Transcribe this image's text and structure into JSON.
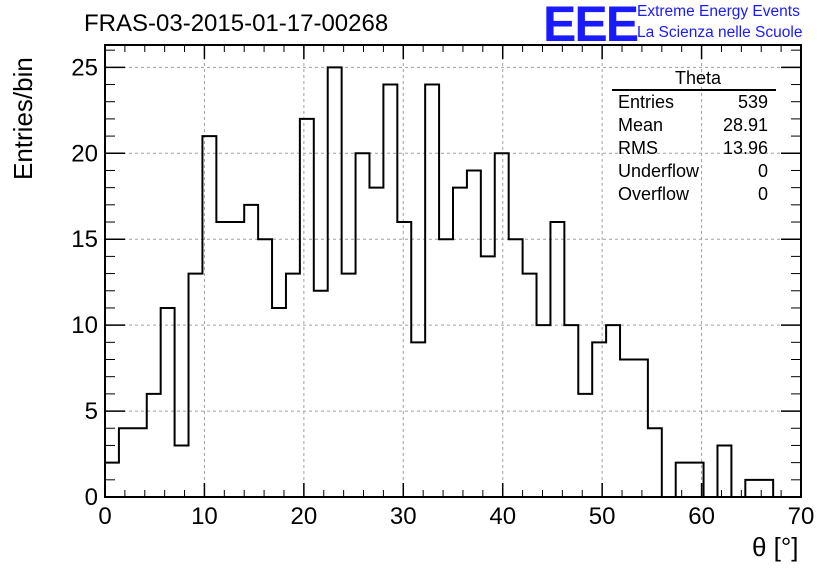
{
  "chart_data": {
    "type": "histogram",
    "title": "FRAS-03-2015-01-17-00268",
    "xlabel": "θ [°]",
    "ylabel": "Entries/bin",
    "xlim": [
      0,
      70
    ],
    "ylim": [
      0,
      26.3
    ],
    "x_ticks": [
      0,
      10,
      20,
      30,
      40,
      50,
      60,
      70
    ],
    "y_ticks": [
      0,
      5,
      10,
      15,
      20,
      25
    ],
    "grid": true,
    "bin_width": 1.4,
    "bin_start": 0,
    "values": [
      2,
      4,
      4,
      6,
      11,
      3,
      13,
      21,
      16,
      16,
      17,
      15,
      11,
      13,
      22,
      12,
      25,
      13,
      20,
      18,
      24,
      16,
      9,
      24,
      15,
      18,
      19,
      14,
      20,
      15,
      13,
      10,
      16,
      10,
      6,
      9,
      10,
      8,
      8,
      4,
      0,
      2,
      2,
      0,
      3,
      0,
      1,
      1,
      0,
      0
    ],
    "stats": {
      "title": "Theta",
      "rows": [
        {
          "label": "Entries",
          "value": "539"
        },
        {
          "label": "Mean",
          "value": "28.91"
        },
        {
          "label": "RMS",
          "value": "13.96"
        },
        {
          "label": "Underflow",
          "value": "0"
        },
        {
          "label": "Overflow",
          "value": "0"
        }
      ]
    }
  },
  "logo": {
    "mark": "EEE",
    "line1": "Extreme Energy Events",
    "line2": "La Scienza nelle Scuole",
    "color": "#1a1aff"
  }
}
